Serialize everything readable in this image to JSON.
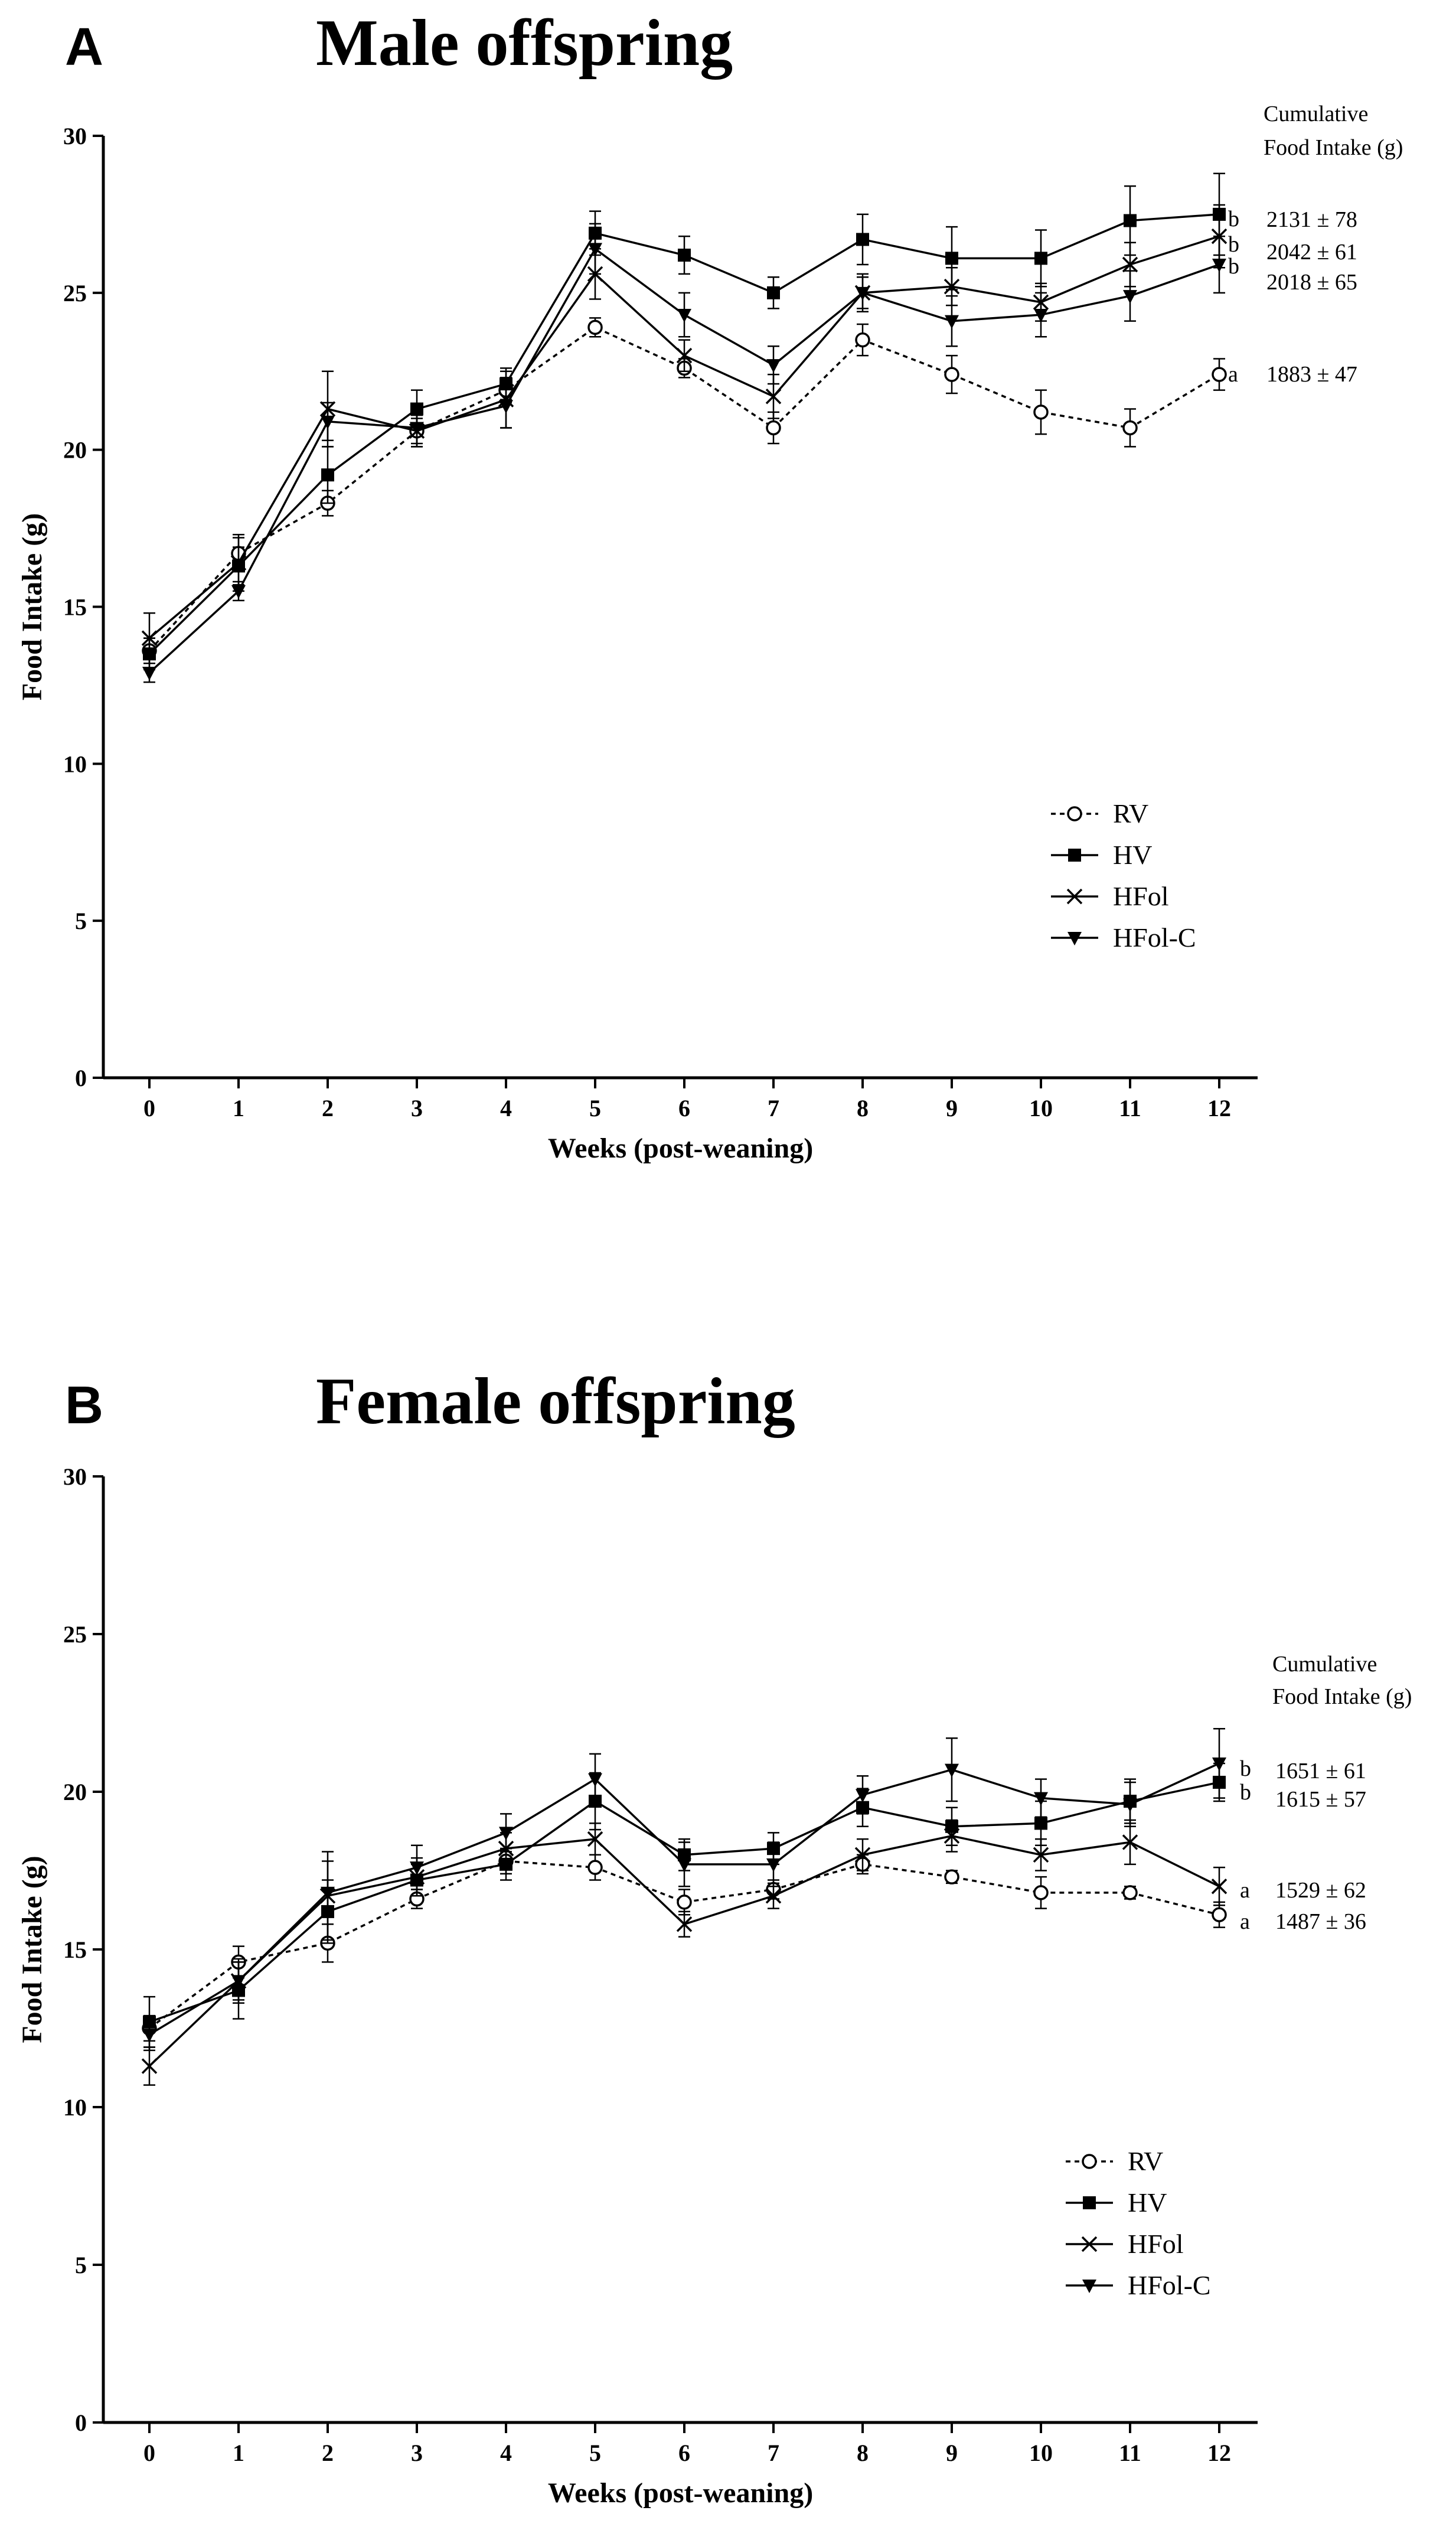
{
  "chart_data": [
    {
      "type": "line",
      "panel_label": "A",
      "title": "Male offspring",
      "xlabel": "Weeks (post-weaning)",
      "ylabel": "Food Intake (g)",
      "x": [
        0,
        1,
        2,
        3,
        4,
        5,
        6,
        7,
        8,
        9,
        10,
        11,
        12
      ],
      "xlim": [
        0,
        12
      ],
      "ylim": [
        0,
        30
      ],
      "yticks": [
        0,
        5,
        10,
        15,
        20,
        25,
        30
      ],
      "cumulative_header": [
        "Cumulative",
        "Food Intake (g)"
      ],
      "series": [
        {
          "name": "RV",
          "marker": "circle-open",
          "dash": "dotted",
          "values": [
            13.6,
            16.7,
            18.3,
            20.6,
            21.9,
            23.9,
            22.6,
            20.7,
            23.5,
            22.4,
            21.2,
            20.7,
            22.4
          ],
          "errors": [
            0.4,
            0.5,
            0.4,
            0.4,
            0.4,
            0.3,
            0.3,
            0.5,
            0.5,
            0.6,
            0.7,
            0.6,
            0.5
          ],
          "cumulative": "1883 ± 47",
          "letter": "a"
        },
        {
          "name": "HV",
          "marker": "square-filled",
          "dash": "solid",
          "values": [
            13.5,
            16.3,
            19.2,
            21.3,
            22.1,
            26.9,
            26.2,
            25.0,
            26.7,
            26.1,
            26.1,
            27.3,
            27.5
          ],
          "errors": [
            0.5,
            0.6,
            0.9,
            0.6,
            0.5,
            0.7,
            0.6,
            0.5,
            0.8,
            1.0,
            0.9,
            1.1,
            1.3
          ],
          "cumulative": "2131 ± 78",
          "letter": "b"
        },
        {
          "name": "HFol",
          "marker": "x",
          "dash": "solid",
          "values": [
            14.0,
            16.4,
            21.3,
            20.6,
            21.6,
            25.6,
            23.0,
            21.7,
            25.0,
            25.2,
            24.7,
            25.9,
            26.8
          ],
          "errors": [
            0.8,
            0.9,
            1.2,
            0.5,
            0.9,
            0.8,
            0.5,
            0.7,
            0.6,
            0.6,
            0.6,
            0.7,
            1.0
          ],
          "cumulative": "2042 ± 61",
          "letter": "b"
        },
        {
          "name": "HFol-C",
          "marker": "triangle-down-filled",
          "dash": "solid",
          "values": [
            12.9,
            15.5,
            20.9,
            20.7,
            21.4,
            26.4,
            24.3,
            22.7,
            25.0,
            24.1,
            24.3,
            24.9,
            25.9
          ],
          "errors": [
            0.3,
            0.3,
            0.6,
            0.6,
            0.7,
            0.8,
            0.7,
            0.6,
            0.5,
            0.8,
            0.7,
            0.8,
            0.9
          ],
          "cumulative": "2018 ± 65",
          "letter": "b"
        }
      ]
    },
    {
      "type": "line",
      "panel_label": "B",
      "title": "Female offspring",
      "xlabel": "Weeks (post-weaning)",
      "ylabel": "Food Intake (g)",
      "x": [
        0,
        1,
        2,
        3,
        4,
        5,
        6,
        7,
        8,
        9,
        10,
        11,
        12
      ],
      "xlim": [
        0,
        12
      ],
      "ylim": [
        0,
        30
      ],
      "yticks": [
        0,
        5,
        10,
        15,
        20,
        25,
        30
      ],
      "cumulative_header": [
        "Cumulative",
        "Food Intake (g)"
      ],
      "series": [
        {
          "name": "RV",
          "marker": "circle-open",
          "dash": "dotted",
          "values": [
            12.5,
            14.6,
            15.2,
            16.6,
            17.8,
            17.6,
            16.5,
            16.9,
            17.7,
            17.3,
            16.8,
            16.8,
            16.1
          ],
          "errors": [
            0.4,
            0.5,
            0.6,
            0.3,
            0.4,
            0.4,
            0.4,
            0.3,
            0.3,
            0.2,
            0.5,
            0.2,
            0.4
          ],
          "cumulative": "1487 ± 36",
          "letter": "a"
        },
        {
          "name": "HV",
          "marker": "square-filled",
          "dash": "solid",
          "values": [
            12.7,
            13.7,
            16.2,
            17.2,
            17.7,
            19.7,
            18.0,
            18.2,
            19.5,
            18.9,
            19.0,
            19.7,
            20.3
          ],
          "errors": [
            0.8,
            0.9,
            1.0,
            0.5,
            0.5,
            0.9,
            0.5,
            0.5,
            0.6,
            0.6,
            0.7,
            0.7,
            0.6
          ],
          "cumulative": "1615 ± 57",
          "letter": "b"
        },
        {
          "name": "HFol",
          "marker": "x",
          "dash": "solid",
          "values": [
            11.3,
            14.0,
            16.7,
            17.3,
            18.2,
            18.5,
            15.8,
            16.7,
            18.0,
            18.6,
            18.0,
            18.4,
            17.0
          ],
          "errors": [
            0.6,
            0.7,
            1.4,
            0.6,
            0.5,
            0.5,
            0.4,
            0.4,
            0.5,
            0.5,
            0.5,
            0.7,
            0.6
          ],
          "cumulative": "1529 ± 62",
          "letter": "a"
        },
        {
          "name": "HFol-C",
          "marker": "triangle-down-filled",
          "dash": "solid",
          "values": [
            12.3,
            14.0,
            16.8,
            17.6,
            18.7,
            20.4,
            17.7,
            17.7,
            19.9,
            20.7,
            19.8,
            19.6,
            20.9
          ],
          "errors": [
            0.5,
            0.6,
            1.0,
            0.7,
            0.6,
            0.8,
            0.7,
            0.7,
            0.6,
            1.0,
            0.6,
            0.7,
            1.1
          ],
          "cumulative": "1651 ± 61",
          "letter": "b"
        }
      ]
    }
  ]
}
